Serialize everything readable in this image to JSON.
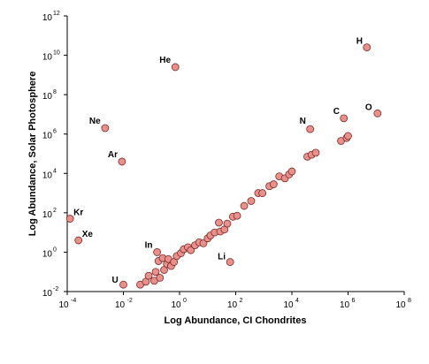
{
  "chart_data": {
    "type": "scatter",
    "xscale": "log",
    "yscale": "log",
    "xlabel": "Log Abundance, CI Chondrites",
    "ylabel": "Log Abundance, Solar Photosphere",
    "xlim_log10": [
      -4,
      8
    ],
    "ylim_log10": [
      -2,
      12
    ],
    "xticks": [
      {
        "base": "10",
        "exp": "-4"
      },
      {
        "base": "10",
        "exp": "-2"
      },
      {
        "base": "10",
        "exp": "0"
      },
      {
        "base": "10",
        "exp": "2"
      },
      {
        "base": "10",
        "exp": "4"
      },
      {
        "base": "10",
        "exp": "6"
      },
      {
        "base": "10",
        "exp": "8"
      }
    ],
    "yticks": [
      {
        "base": "10",
        "exp": "-2"
      },
      {
        "base": "10",
        "exp": "0"
      },
      {
        "base": "10",
        "exp": "2"
      },
      {
        "base": "10",
        "exp": "4"
      },
      {
        "base": "10",
        "exp": "6"
      },
      {
        "base": "10",
        "exp": "8"
      },
      {
        "base": "10",
        "exp": "10"
      },
      {
        "base": "10",
        "exp": "12"
      }
    ],
    "grid": false,
    "legend": "none",
    "marker_fill": "#e8908b",
    "marker_stroke": "#7a2a26",
    "labeled_points": [
      {
        "label": "H",
        "log_x": 6.67,
        "log_y": 10.4
      },
      {
        "label": "He",
        "log_x": -0.15,
        "log_y": 9.4
      },
      {
        "label": "Ne",
        "log_x": -2.65,
        "log_y": 6.3
      },
      {
        "label": "Ar",
        "log_x": -2.05,
        "log_y": 4.6
      },
      {
        "label": "Kr",
        "log_x": -3.9,
        "log_y": 1.7
      },
      {
        "label": "Xe",
        "log_x": -3.6,
        "log_y": 0.6
      },
      {
        "label": "N",
        "log_x": 4.65,
        "log_y": 6.25
      },
      {
        "label": "C",
        "log_x": 5.85,
        "log_y": 6.8
      },
      {
        "label": "O",
        "log_x": 7.05,
        "log_y": 7.05
      },
      {
        "label": "In",
        "log_x": -0.8,
        "log_y": 0.0
      },
      {
        "label": "Li",
        "log_x": 1.8,
        "log_y": -0.5
      },
      {
        "label": "U",
        "log_x": -2.0,
        "log_y": -1.65
      }
    ],
    "points": [
      {
        "log_x": -1.4,
        "log_y": -1.65
      },
      {
        "log_x": -1.2,
        "log_y": -1.5
      },
      {
        "log_x": -0.9,
        "log_y": -1.45
      },
      {
        "log_x": -1.1,
        "log_y": -1.2
      },
      {
        "log_x": -0.85,
        "log_y": -1.0
      },
      {
        "log_x": -0.7,
        "log_y": -1.3
      },
      {
        "log_x": -0.55,
        "log_y": -0.9
      },
      {
        "log_x": -0.45,
        "log_y": -0.6
      },
      {
        "log_x": -0.3,
        "log_y": -0.7
      },
      {
        "log_x": -0.75,
        "log_y": -0.45
      },
      {
        "log_x": -0.6,
        "log_y": -0.3
      },
      {
        "log_x": -0.4,
        "log_y": -0.35
      },
      {
        "log_x": -0.2,
        "log_y": -0.5
      },
      {
        "log_x": -0.1,
        "log_y": -0.2
      },
      {
        "log_x": 0.05,
        "log_y": -0.05
      },
      {
        "log_x": 0.15,
        "log_y": 0.15
      },
      {
        "log_x": 0.3,
        "log_y": 0.25
      },
      {
        "log_x": 0.4,
        "log_y": 0.1
      },
      {
        "log_x": 0.55,
        "log_y": 0.35
      },
      {
        "log_x": 0.7,
        "log_y": 0.5
      },
      {
        "log_x": 0.85,
        "log_y": 0.45
      },
      {
        "log_x": 1.0,
        "log_y": 0.7
      },
      {
        "log_x": 1.1,
        "log_y": 0.85
      },
      {
        "log_x": 1.25,
        "log_y": 1.0
      },
      {
        "log_x": 1.45,
        "log_y": 1.05
      },
      {
        "log_x": 1.6,
        "log_y": 1.15
      },
      {
        "log_x": 1.4,
        "log_y": 1.5
      },
      {
        "log_x": 1.7,
        "log_y": 1.45
      },
      {
        "log_x": 1.9,
        "log_y": 1.8
      },
      {
        "log_x": 2.05,
        "log_y": 1.85
      },
      {
        "log_x": 2.3,
        "log_y": 2.35
      },
      {
        "log_x": 2.55,
        "log_y": 2.6
      },
      {
        "log_x": 2.8,
        "log_y": 3.0
      },
      {
        "log_x": 2.95,
        "log_y": 3.0
      },
      {
        "log_x": 3.2,
        "log_y": 3.35
      },
      {
        "log_x": 3.35,
        "log_y": 3.45
      },
      {
        "log_x": 3.55,
        "log_y": 3.85
      },
      {
        "log_x": 3.75,
        "log_y": 3.75
      },
      {
        "log_x": 3.9,
        "log_y": 3.95
      },
      {
        "log_x": 4.0,
        "log_y": 4.1
      },
      {
        "log_x": 4.55,
        "log_y": 4.85
      },
      {
        "log_x": 4.7,
        "log_y": 4.95
      },
      {
        "log_x": 4.85,
        "log_y": 5.05
      },
      {
        "log_x": 5.75,
        "log_y": 5.65
      },
      {
        "log_x": 5.95,
        "log_y": 5.8
      },
      {
        "log_x": 6.0,
        "log_y": 5.9
      }
    ]
  }
}
